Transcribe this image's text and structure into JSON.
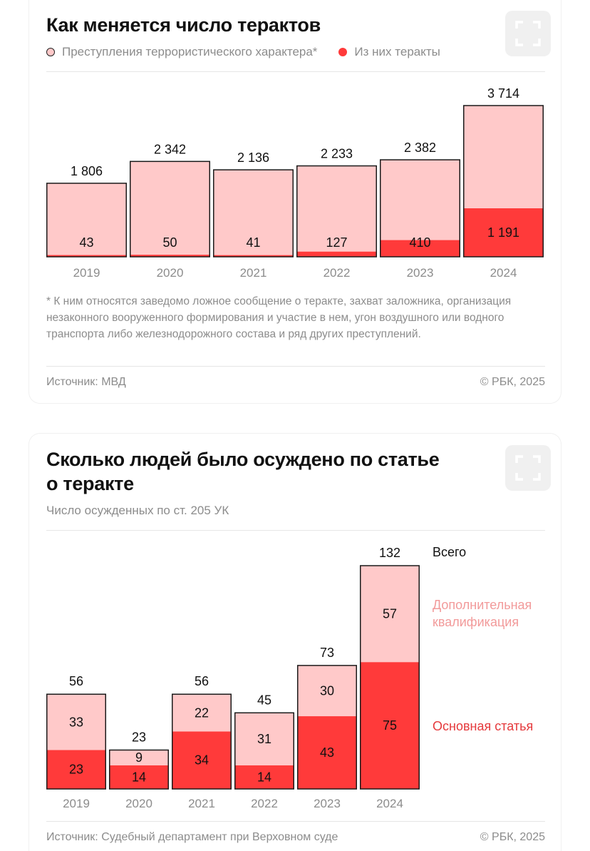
{
  "colors": {
    "light": "#ffc9c9",
    "dark": "#ff3a3a",
    "outline": "#1a1a1a",
    "muted": "#8c8c8c"
  },
  "card1": {
    "title": "Как меняется число терактов",
    "legend": [
      {
        "label": "Преступления террористического характера*",
        "style": "light"
      },
      {
        "label": "Из них теракты",
        "style": "dark"
      }
    ],
    "footnote": "* К ним относятся заведомо ложное сообщение о теракте, захват заложника, организация незаконного вооруженного формирования и участие в нем, угон воздушного или водного транспорта либо железнодорожного состава и ряд других преступлений.",
    "source": "Источник: МВД",
    "copyright": "© РБК, 2025",
    "expand_icon": "expand-icon"
  },
  "card2": {
    "title_line1": "Сколько людей было осуждено по статье",
    "title_line2": "о теракте",
    "subtitle": "Число осужденных по ст. 205 УК",
    "side_labels": {
      "total": "Всего",
      "extra_line1": "Дополнительная",
      "extra_line2": "квалификация",
      "main": "Основная статья"
    },
    "source": "Источник: Судебный департамент при Верховном суде",
    "copyright": "© РБК, 2025",
    "expand_icon": "expand-icon"
  },
  "chart_data": [
    {
      "type": "bar",
      "title": "Как меняется число терактов",
      "categories": [
        "2019",
        "2020",
        "2021",
        "2022",
        "2023",
        "2024"
      ],
      "totals_labels": [
        "1 806",
        "2 342",
        "2 136",
        "2 233",
        "2 382",
        "3 714"
      ],
      "series": [
        {
          "name": "Преступления террористического характера*",
          "values": [
            1806,
            2342,
            2136,
            2233,
            2382,
            3714
          ]
        },
        {
          "name": "Из них теракты",
          "values": [
            43,
            50,
            41,
            127,
            410,
            1191
          ],
          "labels": [
            "43",
            "50",
            "41",
            "127",
            "410",
            "1 191"
          ]
        }
      ],
      "ylim": [
        0,
        3714
      ],
      "grid": false
    },
    {
      "type": "bar",
      "stacked": true,
      "title": "Сколько людей было осуждено по статье о теракте",
      "subtitle": "Число осужденных по ст. 205 УК",
      "categories": [
        "2019",
        "2020",
        "2021",
        "2022",
        "2023",
        "2024"
      ],
      "series": [
        {
          "name": "Основная статья",
          "values": [
            23,
            14,
            34,
            14,
            43,
            75
          ]
        },
        {
          "name": "Дополнительная квалификация",
          "values": [
            33,
            9,
            22,
            31,
            30,
            57
          ]
        }
      ],
      "totals": [
        56,
        23,
        56,
        45,
        73,
        132
      ],
      "ylim": [
        0,
        132
      ],
      "grid": false
    }
  ]
}
